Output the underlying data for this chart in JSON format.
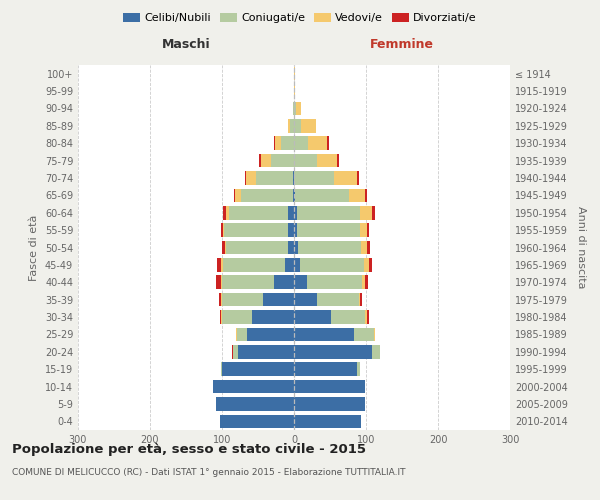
{
  "age_groups": [
    "0-4",
    "5-9",
    "10-14",
    "15-19",
    "20-24",
    "25-29",
    "30-34",
    "35-39",
    "40-44",
    "45-49",
    "50-54",
    "55-59",
    "60-64",
    "65-69",
    "70-74",
    "75-79",
    "80-84",
    "85-89",
    "90-94",
    "95-99",
    "100+"
  ],
  "birth_years": [
    "2010-2014",
    "2005-2009",
    "2000-2004",
    "1995-1999",
    "1990-1994",
    "1985-1989",
    "1980-1984",
    "1975-1979",
    "1970-1974",
    "1965-1969",
    "1960-1964",
    "1955-1959",
    "1950-1954",
    "1945-1949",
    "1940-1944",
    "1935-1939",
    "1930-1934",
    "1925-1929",
    "1920-1924",
    "1915-1919",
    "≤ 1914"
  ],
  "male_celibi": [
    103,
    108,
    112,
    100,
    78,
    65,
    58,
    43,
    28,
    12,
    9,
    9,
    8,
    2,
    1,
    0,
    0,
    0,
    0,
    0,
    0
  ],
  "male_coniugati": [
    0,
    0,
    0,
    2,
    7,
    14,
    42,
    57,
    72,
    87,
    85,
    88,
    82,
    72,
    52,
    32,
    18,
    5,
    1,
    0,
    0
  ],
  "male_vedovi": [
    0,
    0,
    0,
    0,
    0,
    1,
    1,
    1,
    2,
    2,
    2,
    2,
    4,
    8,
    13,
    14,
    9,
    4,
    1,
    0,
    0
  ],
  "male_divorziati": [
    0,
    0,
    0,
    0,
    1,
    1,
    2,
    3,
    6,
    6,
    4,
    3,
    5,
    1,
    2,
    2,
    1,
    0,
    0,
    0,
    0
  ],
  "female_celibi": [
    93,
    98,
    98,
    88,
    108,
    83,
    52,
    32,
    18,
    9,
    6,
    4,
    4,
    1,
    0,
    0,
    0,
    0,
    0,
    0,
    0
  ],
  "female_coniugati": [
    0,
    0,
    0,
    3,
    11,
    28,
    47,
    58,
    77,
    88,
    87,
    88,
    87,
    75,
    55,
    32,
    20,
    10,
    3,
    0,
    0
  ],
  "female_vedovi": [
    0,
    0,
    0,
    0,
    0,
    1,
    2,
    2,
    4,
    7,
    8,
    10,
    18,
    23,
    33,
    28,
    26,
    20,
    7,
    1,
    1
  ],
  "female_divorziati": [
    0,
    0,
    0,
    0,
    0,
    1,
    3,
    3,
    4,
    5,
    4,
    2,
    4,
    2,
    2,
    2,
    2,
    1,
    0,
    0,
    0
  ],
  "color_celibi": "#3c6ea5",
  "color_coniugati": "#b5cba0",
  "color_vedovi": "#f5c96d",
  "color_divorziati": "#cc2222",
  "xlim": 300,
  "title": "Popolazione per età, sesso e stato civile - 2015",
  "subtitle": "COMUNE DI MELICUCCO (RC) - Dati ISTAT 1° gennaio 2015 - Elaborazione TUTTITALIA.IT",
  "ylabel_left": "Fasce di età",
  "ylabel_right": "Anni di nascita",
  "xlabel_left": "Maschi",
  "xlabel_right": "Femmine",
  "bg_color": "#f0f0eb",
  "plot_bg": "#ffffff"
}
